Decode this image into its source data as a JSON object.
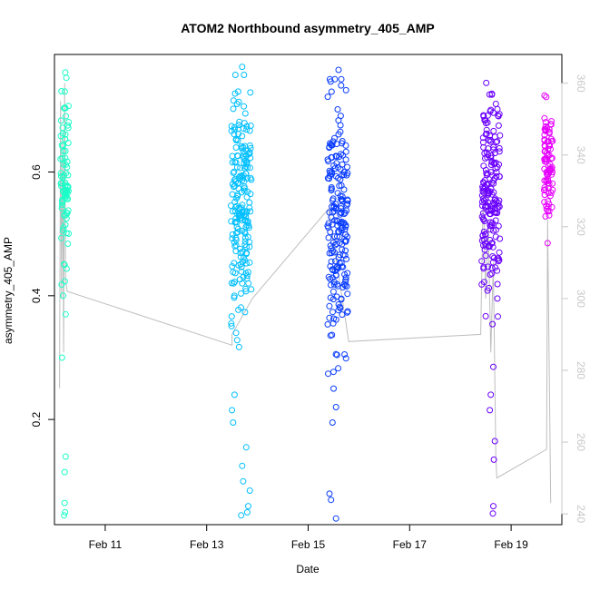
{
  "chart_data": {
    "type": "scatter",
    "title": "ATOM2 Northbound asymmetry_405_AMP",
    "xlabel": "Date",
    "ylabel": "asymmetry_405_AMP",
    "x_ticks": [
      "Feb 11",
      "Feb 13",
      "Feb 15",
      "Feb 17",
      "Feb 19"
    ],
    "x_range_days": [
      10.0,
      20.0
    ],
    "y_ticks": [
      0.2,
      0.4,
      0.6
    ],
    "ylim": [
      0.03,
      0.79
    ],
    "y2_ticks": [
      240,
      260,
      280,
      300,
      320,
      340,
      360
    ],
    "y2lim": [
      237,
      368
    ],
    "grid": false,
    "legend": "none",
    "series": [
      {
        "color": "#1affc8",
        "x_range": [
          10.12,
          10.28
        ],
        "y_center": 0.6,
        "y_spread": 0.07,
        "outliers": [
          [
            10.2,
            0.45
          ],
          [
            10.17,
            0.4
          ],
          [
            10.22,
            0.37
          ],
          [
            10.15,
            0.3
          ],
          [
            10.22,
            0.14
          ],
          [
            10.2,
            0.115
          ],
          [
            10.2,
            0.065
          ],
          [
            10.21,
            0.05
          ],
          [
            10.19,
            0.045
          ]
        ]
      },
      {
        "color": "#00bfff",
        "x_range": [
          13.48,
          13.88
        ],
        "y_center": 0.55,
        "y_spread": 0.09,
        "outliers": [
          [
            13.7,
            0.77
          ],
          [
            13.62,
            0.73
          ],
          [
            13.6,
            0.71
          ],
          [
            13.55,
            0.24
          ],
          [
            13.5,
            0.215
          ],
          [
            13.52,
            0.195
          ],
          [
            13.78,
            0.155
          ],
          [
            13.7,
            0.125
          ],
          [
            13.72,
            0.1
          ],
          [
            13.85,
            0.085
          ],
          [
            13.82,
            0.06
          ],
          [
            13.68,
            0.045
          ],
          [
            13.8,
            0.05
          ]
        ]
      },
      {
        "color": "#0a3cff",
        "x_range": [
          15.38,
          15.78
        ],
        "y_center": 0.52,
        "y_spread": 0.1,
        "outliers": [
          [
            15.6,
            0.765
          ],
          [
            15.65,
            0.74
          ],
          [
            15.5,
            0.25
          ],
          [
            15.55,
            0.22
          ],
          [
            15.48,
            0.195
          ],
          [
            15.42,
            0.08
          ],
          [
            15.45,
            0.07
          ],
          [
            15.55,
            0.04
          ]
        ]
      },
      {
        "color": "#6a00ff",
        "x_range": [
          18.42,
          18.78
        ],
        "y_center": 0.56,
        "y_spread": 0.08,
        "outliers": [
          [
            18.62,
            0.725
          ],
          [
            18.7,
            0.71
          ],
          [
            18.65,
            0.285
          ],
          [
            18.6,
            0.24
          ],
          [
            18.58,
            0.215
          ],
          [
            18.68,
            0.165
          ],
          [
            18.66,
            0.135
          ],
          [
            18.65,
            0.06
          ],
          [
            18.64,
            0.048
          ]
        ]
      },
      {
        "color": "#e600ff",
        "x_range": [
          19.65,
          19.82
        ],
        "y_center": 0.62,
        "y_spread": 0.045,
        "outliers": [
          [
            19.72,
            0.485
          ],
          [
            19.7,
            0.54
          ],
          [
            19.75,
            0.53
          ]
        ]
      }
    ],
    "secondary_line": {
      "color": "#bebebe",
      "points": [
        [
          10.1,
          275
        ],
        [
          10.12,
          355
        ],
        [
          10.14,
          300
        ],
        [
          10.16,
          345
        ],
        [
          10.18,
          285
        ],
        [
          10.2,
          360
        ],
        [
          10.22,
          305
        ],
        [
          10.25,
          302
        ],
        [
          13.5,
          287
        ],
        [
          13.5,
          290
        ],
        [
          13.9,
          300
        ],
        [
          15.4,
          325
        ],
        [
          15.8,
          288
        ],
        [
          18.4,
          290
        ],
        [
          18.45,
          330
        ],
        [
          18.5,
          300
        ],
        [
          18.55,
          320
        ],
        [
          18.6,
          285
        ],
        [
          18.65,
          310
        ],
        [
          18.7,
          255
        ],
        [
          18.72,
          250
        ],
        [
          19.7,
          258
        ],
        [
          19.72,
          322
        ],
        [
          19.78,
          243
        ]
      ]
    }
  }
}
